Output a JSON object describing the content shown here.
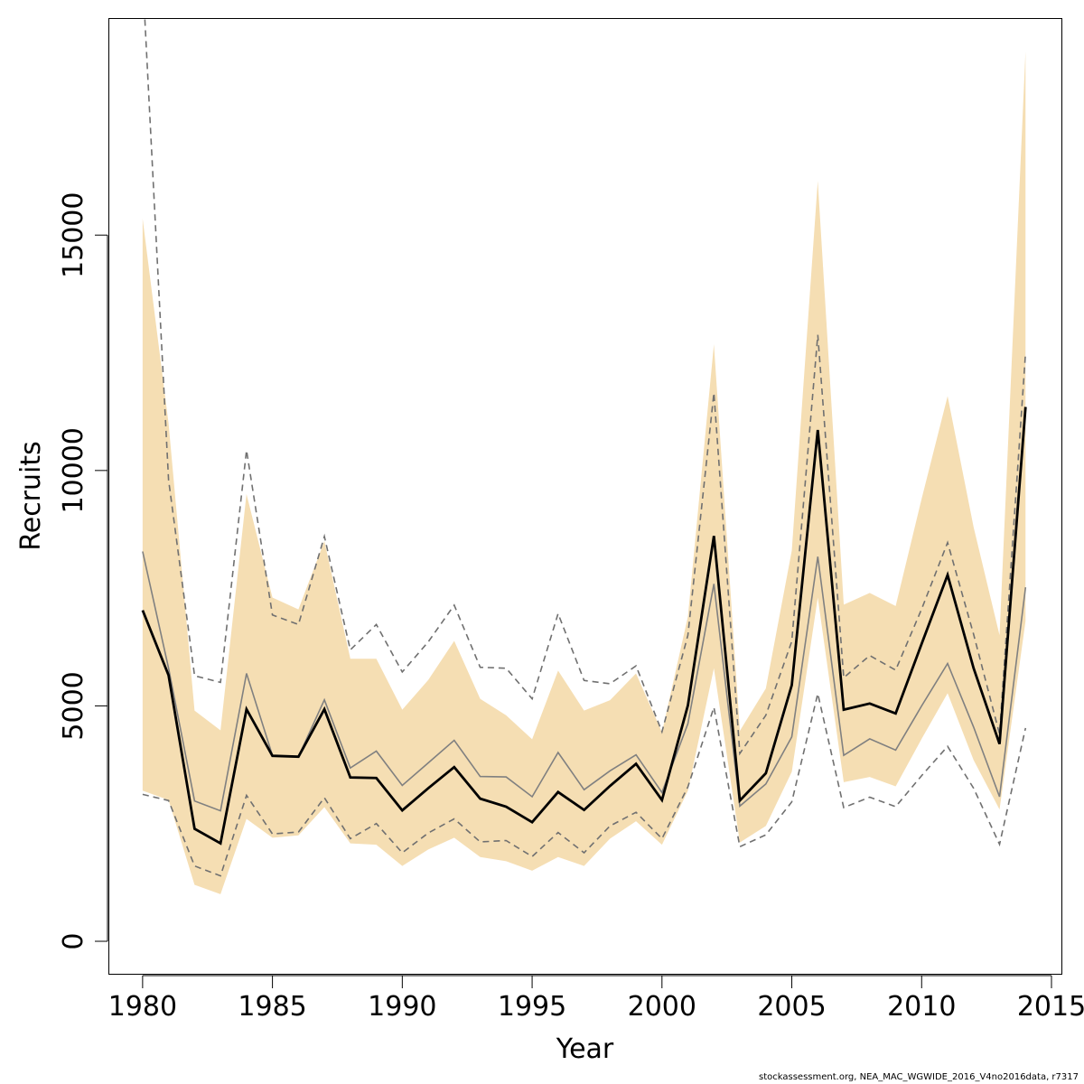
{
  "chart_data": {
    "type": "line",
    "title": "",
    "xlabel": "Year",
    "ylabel": "Recruits",
    "xlim": [
      1978.7,
      2015.4
    ],
    "ylim": [
      -700,
      19600
    ],
    "x_ticks": [
      "1980",
      "1985",
      "1990",
      "1995",
      "2000",
      "2005",
      "2010",
      "2015"
    ],
    "y_ticks": [
      "0",
      "5000",
      "10000",
      "15000"
    ],
    "grid": false,
    "legend": "none",
    "colors": {
      "band": "#f5deb3",
      "estimate": "#000000",
      "secondary": "#808080",
      "interval": "#707070"
    },
    "x": [
      1980,
      1981,
      1982,
      1983,
      1984,
      1985,
      1986,
      1987,
      1988,
      1989,
      1990,
      1991,
      1992,
      1993,
      1994,
      1995,
      1996,
      1997,
      1998,
      1999,
      2000,
      2001,
      2002,
      2003,
      2004,
      2005,
      2006,
      2007,
      2008,
      2009,
      2010,
      2011,
      2012,
      2013,
      2014
    ],
    "series": [
      {
        "role": "band_upper",
        "values": [
          15350,
          11000,
          4900,
          4480,
          9500,
          7300,
          7050,
          8500,
          6000,
          6000,
          4920,
          5550,
          6380,
          5150,
          4800,
          4290,
          5750,
          4900,
          5120,
          5690,
          4440,
          6900,
          12680,
          4470,
          5370,
          8300,
          16150,
          7150,
          7400,
          7120,
          9400,
          11580,
          8800,
          6500,
          18900
        ]
      },
      {
        "role": "band_lower",
        "values": [
          3200,
          3000,
          1200,
          1000,
          2600,
          2200,
          2250,
          2850,
          2080,
          2050,
          1600,
          1950,
          2200,
          1790,
          1700,
          1500,
          1790,
          1600,
          2180,
          2550,
          2050,
          3200,
          5800,
          2100,
          2450,
          3600,
          7300,
          3380,
          3490,
          3290,
          4300,
          5270,
          3850,
          2800,
          6800
        ]
      },
      {
        "role": "estimate",
        "values": [
          7030,
          5650,
          2390,
          2080,
          4930,
          3940,
          3920,
          4930,
          3480,
          3470,
          2780,
          3250,
          3700,
          3030,
          2860,
          2530,
          3170,
          2790,
          3300,
          3770,
          3000,
          5010,
          8610,
          2990,
          3570,
          5440,
          10860,
          4920,
          5050,
          4840,
          6320,
          7780,
          5800,
          4190,
          11350
        ]
      },
      {
        "role": "secondary",
        "values": [
          8280,
          5800,
          2980,
          2770,
          5690,
          3950,
          3920,
          5130,
          3680,
          4040,
          3310,
          3790,
          4270,
          3500,
          3490,
          3070,
          4010,
          3220,
          3620,
          3960,
          3160,
          4620,
          7590,
          2870,
          3340,
          4340,
          8170,
          3950,
          4300,
          4060,
          5000,
          5900,
          4550,
          3070,
          7520
        ]
      },
      {
        "role": "interval_upper",
        "values": [
          20500,
          9800,
          5640,
          5500,
          10430,
          6930,
          6730,
          8600,
          6190,
          6730,
          5720,
          6360,
          7140,
          5820,
          5800,
          5150,
          6960,
          5540,
          5470,
          5850,
          4450,
          6500,
          11650,
          3990,
          4800,
          6370,
          12880,
          5600,
          6070,
          5760,
          7060,
          8470,
          6520,
          4400,
          12500
        ]
      },
      {
        "role": "interval_lower",
        "values": [
          3120,
          2990,
          1600,
          1390,
          3100,
          2280,
          2320,
          3050,
          2180,
          2500,
          1880,
          2300,
          2600,
          2110,
          2140,
          1800,
          2310,
          1880,
          2450,
          2740,
          2180,
          3280,
          4970,
          2010,
          2260,
          2960,
          5260,
          2840,
          3060,
          2860,
          3520,
          4140,
          3250,
          2060,
          4530
        ]
      }
    ]
  },
  "footer": {
    "source_note": "stockassessment.org, NEA_MAC_WGWIDE_2016_V4no2016data, r7317"
  }
}
